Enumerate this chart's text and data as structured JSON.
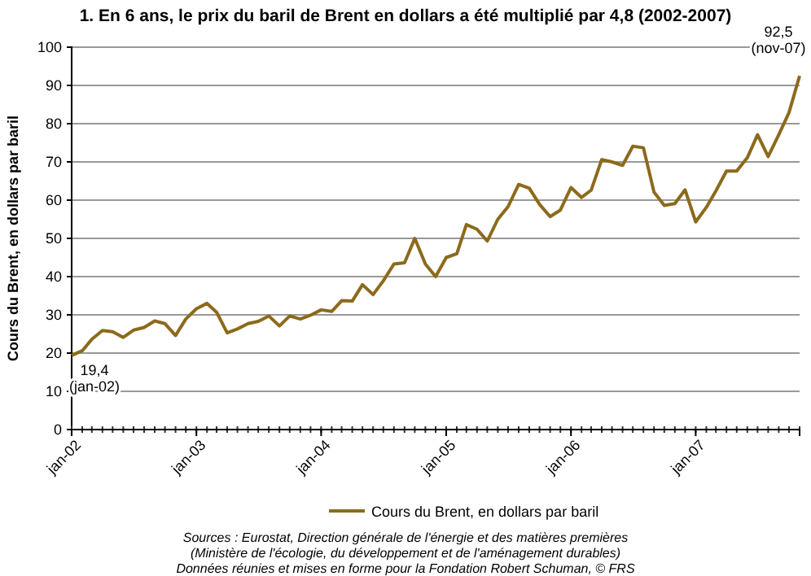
{
  "chart_data": {
    "type": "line",
    "title": "1.  En 6 ans, le prix du baril de Brent en dollars a été multiplié par 4,8 (2002-2007)",
    "ylabel": "Cours du Brent, en dollars par baril",
    "x": [
      "2002-01",
      "2002-02",
      "2002-03",
      "2002-04",
      "2002-05",
      "2002-06",
      "2002-07",
      "2002-08",
      "2002-09",
      "2002-10",
      "2002-11",
      "2002-12",
      "2003-01",
      "2003-02",
      "2003-03",
      "2003-04",
      "2003-05",
      "2003-06",
      "2003-07",
      "2003-08",
      "2003-09",
      "2003-10",
      "2003-11",
      "2003-12",
      "2004-01",
      "2004-02",
      "2004-03",
      "2004-04",
      "2004-05",
      "2004-06",
      "2004-07",
      "2004-08",
      "2004-09",
      "2004-10",
      "2004-11",
      "2004-12",
      "2005-01",
      "2005-02",
      "2005-03",
      "2005-04",
      "2005-05",
      "2005-06",
      "2005-07",
      "2005-08",
      "2005-09",
      "2005-10",
      "2005-11",
      "2005-12",
      "2006-01",
      "2006-02",
      "2006-03",
      "2006-04",
      "2006-05",
      "2006-06",
      "2006-07",
      "2006-08",
      "2006-09",
      "2006-10",
      "2006-11",
      "2006-12",
      "2007-01",
      "2007-02",
      "2007-03",
      "2007-04",
      "2007-05",
      "2007-06",
      "2007-07",
      "2007-08",
      "2007-09",
      "2007-10",
      "2007-11"
    ],
    "series": [
      {
        "name": "Cours du Brent, en dollars par baril",
        "color": "#8c6a1c",
        "values": [
          19.4,
          20.6,
          23.6,
          25.9,
          25.6,
          24.1,
          26,
          26.7,
          28.4,
          27.7,
          24.6,
          28.9,
          31.6,
          33,
          30.7,
          25.3,
          26.3,
          27.7,
          28.3,
          29.7,
          27.1,
          29.7,
          28.9,
          29.9,
          31.3,
          30.9,
          33.7,
          33.6,
          37.9,
          35.3,
          38.9,
          43.3,
          43.6,
          50,
          43.3,
          40,
          45,
          46,
          53.6,
          52.4,
          49.3,
          55,
          58.3,
          64.1,
          63.1,
          58.9,
          55.7,
          57.4,
          63.3,
          60.7,
          62.6,
          70.6,
          70,
          69.1,
          74.1,
          73.7,
          62.1,
          58.6,
          59.1,
          62.7,
          54.3,
          58.1,
          62.4,
          67.6,
          67.6,
          71.1,
          77.1,
          71.4,
          77.1,
          82.9,
          92.5
        ]
      }
    ],
    "xlim": [
      "2002-01",
      "2007-11"
    ],
    "xticks": [
      {
        "value": "2002-01",
        "label": "jan-02"
      },
      {
        "value": "2003-01",
        "label": "jan-03"
      },
      {
        "value": "2004-01",
        "label": "jan-04"
      },
      {
        "value": "2005-01",
        "label": "jan-05"
      },
      {
        "value": "2006-01",
        "label": "jan-06"
      },
      {
        "value": "2007-01",
        "label": "jan-07"
      }
    ],
    "ylim": [
      0,
      100
    ],
    "yticks": [
      0,
      10,
      20,
      30,
      40,
      50,
      60,
      70,
      80,
      90,
      100
    ],
    "grid": "y",
    "legend": "bottom",
    "marker": "none",
    "line_style": "solid",
    "annotations": [
      {
        "text": "19,4\n(jan-02)",
        "x": "2002-01",
        "y": 19.4
      },
      {
        "text": "92,5\n(nov-07)",
        "x": "2007-11",
        "y": 92.5
      },
      "Sources : Eurostat, Direction générale de l'énergie et des matières premières",
      "(Ministère de l'écologie, du développement et de l'aménagement durables)",
      "Données réunies et mises en forme pour la Fondation Robert Schuman, © FRS"
    ]
  }
}
